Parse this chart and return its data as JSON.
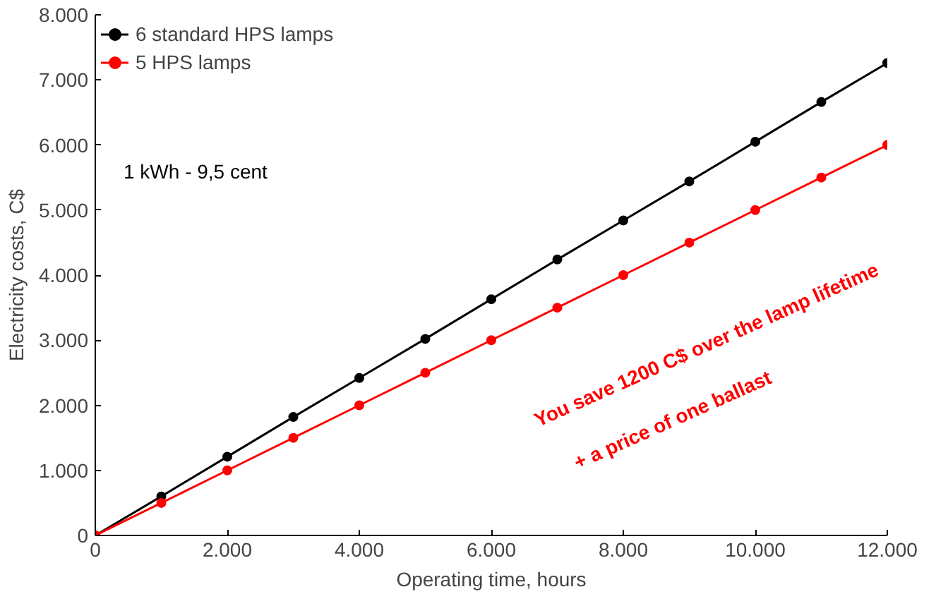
{
  "chart_data": {
    "type": "line",
    "xlabel": "Operating time, hours",
    "ylabel": "Electricity costs, C$",
    "x": [
      0,
      1000,
      2000,
      3000,
      4000,
      5000,
      6000,
      7000,
      8000,
      9000,
      10000,
      11000,
      12000
    ],
    "series": [
      {
        "name": "6 standard HPS lamps",
        "color": "#000000",
        "values": [
          0,
          600,
          1210,
          1820,
          2420,
          3020,
          3630,
          4240,
          4840,
          5440,
          6050,
          6660,
          7260
        ]
      },
      {
        "name": "5 HPS lamps",
        "color": "#ff0000",
        "values": [
          0,
          500,
          1000,
          1500,
          2000,
          2500,
          3000,
          3500,
          4000,
          4500,
          5000,
          5500,
          6000
        ]
      }
    ],
    "xlim": [
      0,
      12000
    ],
    "ylim": [
      0,
      8000
    ],
    "xticks": [
      0,
      {
        "value": 2000,
        "label": "2.000"
      },
      {
        "value": 4000,
        "label": "4.000"
      },
      {
        "value": 6000,
        "label": "6.000"
      },
      {
        "value": 8000,
        "label": "8.000"
      },
      {
        "value": 10000,
        "label": "10.000"
      },
      {
        "value": 12000,
        "label": "12.000"
      }
    ],
    "yticks": [
      0,
      {
        "value": 1000,
        "label": "1.000"
      },
      {
        "value": 2000,
        "label": "2.000"
      },
      {
        "value": 3000,
        "label": "3.000"
      },
      {
        "value": 4000,
        "label": "4.000"
      },
      {
        "value": 5000,
        "label": "5.000"
      },
      {
        "value": 6000,
        "label": "6.000"
      },
      {
        "value": 7000,
        "label": "7.000"
      },
      {
        "value": 8000,
        "label": "8.000"
      }
    ],
    "annotations": [
      "1 kWh - 9,5 cent",
      "You save 1200 C$ over the lamp lifetime",
      "+ a price of one ballast"
    ],
    "grid": false,
    "legend": "top left",
    "marker": "circle",
    "line_style": "solid"
  }
}
